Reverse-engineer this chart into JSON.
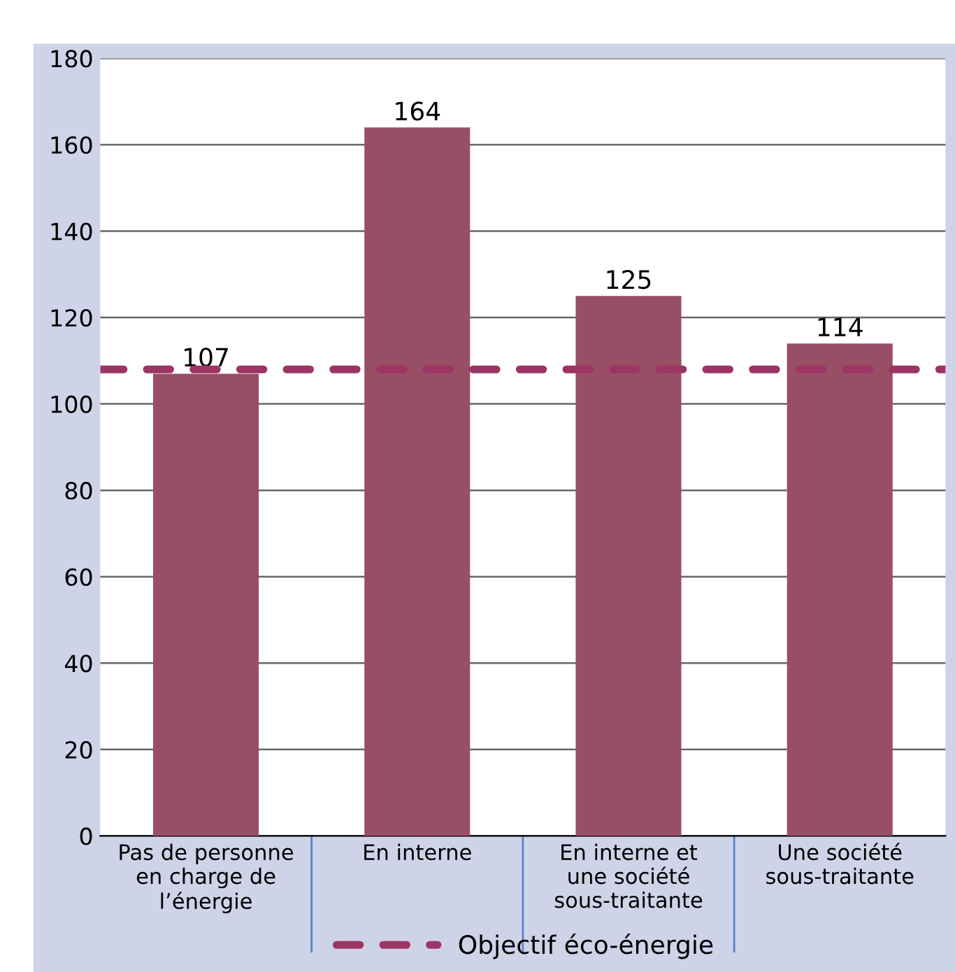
{
  "chart_data": {
    "type": "bar",
    "categories": [
      "Pas de personne\nen charge de\nl’énergie",
      "En interne",
      "En interne et\nune société\nsous-traitante",
      "Une société\nsous-traitante"
    ],
    "series": [
      {
        "color": "#984f66",
        "values": [
          107,
          164,
          125,
          114
        ]
      }
    ],
    "data_labels": true,
    "ylim": [
      0,
      180
    ],
    "yticks": [
      0,
      20,
      40,
      60,
      80,
      100,
      120,
      140,
      160,
      180
    ],
    "grid": "y",
    "legend": "bottom",
    "ref_lines": [
      {
        "axis": "y",
        "value": 108,
        "label": "Objectif éco-énergie",
        "color": "#9c3563",
        "line_style": "dashed"
      }
    ]
  }
}
